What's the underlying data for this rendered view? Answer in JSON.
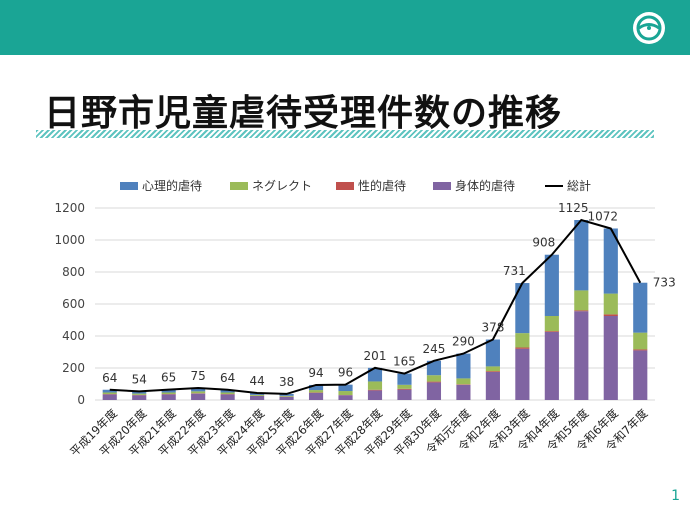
{
  "page": {
    "title": "日野市児童虐待受理件数の推移",
    "page_number": "1"
  },
  "colors": {
    "header": "#1aa595",
    "psych": "#4f81bd",
    "neglect": "#9bbb59",
    "sexual": "#c0504d",
    "physical": "#8064a2",
    "total": "#000000"
  },
  "chart_data": {
    "type": "bar",
    "stacked": true,
    "categories": [
      "平成19年度",
      "平成20年度",
      "平成21年度",
      "平成22年度",
      "平成23年度",
      "平成24年度",
      "平成25年度",
      "平成26年度",
      "平成27年度",
      "平成28年度",
      "平成29年度",
      "平成30年度",
      "令和元年度",
      "令和2年度",
      "令和3年度",
      "令和4年度",
      "令和5年度",
      "令和6年度",
      "令和7年度"
    ],
    "series": [
      {
        "name": "身体的虐待",
        "color": "#8064a2",
        "values": [
          35,
          30,
          35,
          40,
          35,
          25,
          20,
          45,
          30,
          60,
          65,
          110,
          95,
          175,
          320,
          425,
          555,
          525,
          310
        ]
      },
      {
        "name": "性的虐待",
        "color": "#c0504d",
        "values": [
          2,
          2,
          2,
          2,
          2,
          1,
          1,
          2,
          1,
          4,
          5,
          5,
          3,
          5,
          8,
          5,
          5,
          10,
          6
        ]
      },
      {
        "name": "ネグレクト",
        "color": "#9bbb59",
        "values": [
          10,
          8,
          10,
          12,
          10,
          6,
          5,
          15,
          25,
          52,
          25,
          40,
          37,
          30,
          90,
          95,
          125,
          130,
          105
        ]
      },
      {
        "name": "心理的虐待",
        "color": "#4f81bd",
        "values": [
          17,
          14,
          18,
          21,
          17,
          12,
          12,
          32,
          40,
          85,
          70,
          90,
          155,
          168,
          313,
          383,
          440,
          407,
          312
        ]
      }
    ],
    "total": {
      "name": "総計",
      "color": "#000000",
      "values": [
        64,
        54,
        65,
        75,
        64,
        44,
        38,
        94,
        96,
        201,
        165,
        245,
        290,
        378,
        731,
        908,
        1125,
        1072,
        733
      ]
    },
    "legend": [
      "心理的虐待",
      "ネグレクト",
      "性的虐待",
      "身体的虐待",
      "総計"
    ],
    "ylim": [
      0,
      1200
    ],
    "yticks": [
      0,
      200,
      400,
      600,
      800,
      1000,
      1200
    ],
    "grid": true,
    "legend_position": "top"
  }
}
